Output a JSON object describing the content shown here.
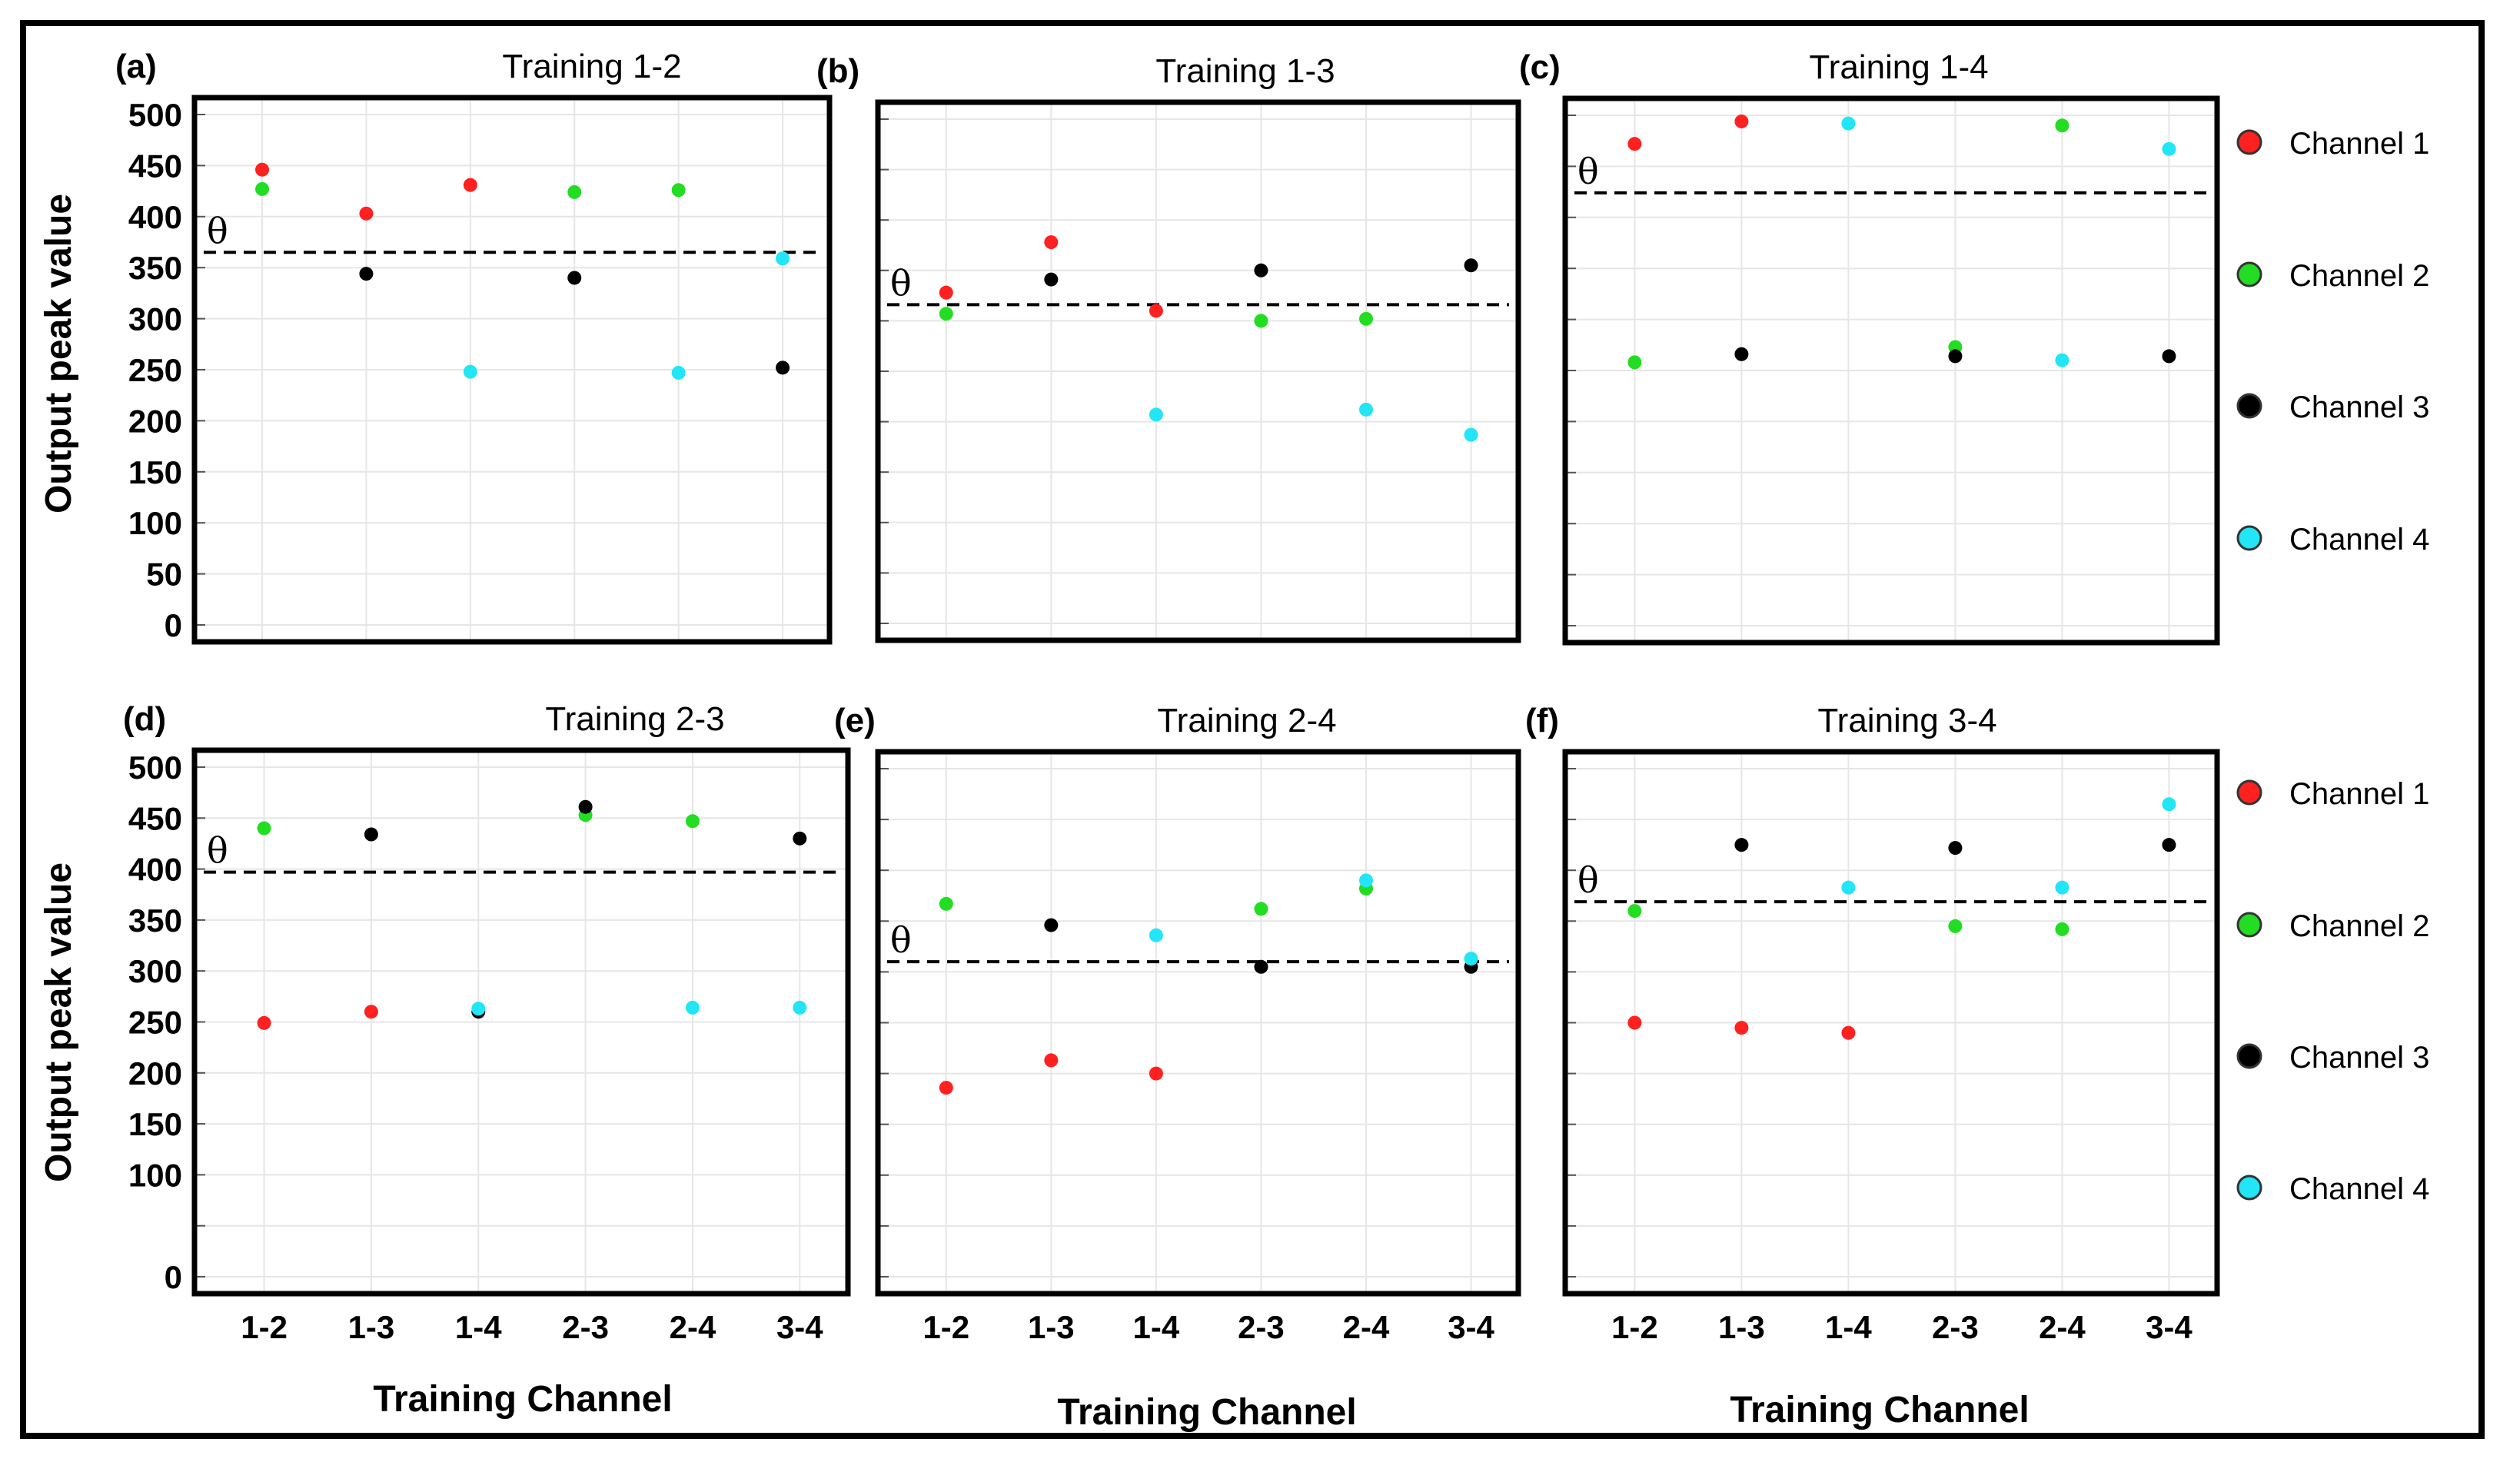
{
  "figure": {
    "ylabel": "Output peak value",
    "xlabel": "Training Channel",
    "threshold_symbol": "θ"
  },
  "legend": [
    {
      "label": "Channel 1",
      "color": "#ff2020"
    },
    {
      "label": "Channel 2",
      "color": "#22dd22"
    },
    {
      "label": "Channel 3",
      "color": "#000000"
    },
    {
      "label": "Channel 4",
      "color": "#22e5f5"
    }
  ],
  "chart_data": [
    {
      "type": "scatter",
      "panel": "(a)",
      "title": "Training 1-2",
      "categories": [
        "1-2",
        "1-3",
        "1-4",
        "2-3",
        "2-4",
        "3-4"
      ],
      "ylim": [
        0,
        500
      ],
      "yticks": [
        0,
        50,
        100,
        150,
        200,
        250,
        300,
        350,
        400,
        450,
        500
      ],
      "threshold": 365,
      "series": [
        {
          "name": "Channel 1",
          "values": [
            446,
            403,
            431,
            null,
            null,
            null
          ]
        },
        {
          "name": "Channel 2",
          "values": [
            427,
            null,
            null,
            424,
            426,
            null
          ]
        },
        {
          "name": "Channel 3",
          "values": [
            null,
            344,
            null,
            340,
            null,
            252
          ]
        },
        {
          "name": "Channel 4",
          "values": [
            null,
            null,
            248,
            null,
            247,
            359
          ]
        }
      ]
    },
    {
      "type": "scatter",
      "panel": "(b)",
      "title": "Training 1-3",
      "categories": [
        "1-2",
        "1-3",
        "1-4",
        "2-3",
        "2-4",
        "3-4"
      ],
      "ylim": [
        0,
        500
      ],
      "yticks": [
        0,
        50,
        100,
        150,
        200,
        250,
        300,
        350,
        400,
        450,
        500
      ],
      "threshold": 316,
      "series": [
        {
          "name": "Channel 1",
          "values": [
            328,
            378,
            310,
            null,
            null,
            null
          ]
        },
        {
          "name": "Channel 2",
          "values": [
            307,
            null,
            null,
            300,
            302,
            null
          ]
        },
        {
          "name": "Channel 3",
          "values": [
            null,
            341,
            null,
            350,
            null,
            355
          ]
        },
        {
          "name": "Channel 4",
          "values": [
            null,
            null,
            207,
            null,
            212,
            187
          ]
        }
      ]
    },
    {
      "type": "scatter",
      "panel": "(c)",
      "title": "Training 1-4",
      "categories": [
        "1-2",
        "1-3",
        "1-4",
        "2-3",
        "2-4",
        "3-4"
      ],
      "ylim": [
        0,
        500
      ],
      "yticks": [
        0,
        50,
        100,
        150,
        200,
        250,
        300,
        350,
        400,
        450,
        500
      ],
      "threshold": 424,
      "series": [
        {
          "name": "Channel 1",
          "values": [
            472,
            494,
            null,
            null,
            null,
            null
          ]
        },
        {
          "name": "Channel 2",
          "values": [
            258,
            null,
            null,
            273,
            490,
            null
          ]
        },
        {
          "name": "Channel 3",
          "values": [
            null,
            266,
            null,
            264,
            null,
            264
          ]
        },
        {
          "name": "Channel 4",
          "values": [
            null,
            null,
            492,
            null,
            260,
            467
          ]
        }
      ]
    },
    {
      "type": "scatter",
      "panel": "(d)",
      "title": "Training 2-3",
      "categories": [
        "1-2",
        "1-3",
        "1-4",
        "2-3",
        "2-4",
        "3-4"
      ],
      "ylim": [
        0,
        500
      ],
      "yticks": [
        0,
        50,
        100,
        150,
        200,
        250,
        300,
        350,
        400,
        450,
        500
      ],
      "threshold": 397,
      "series": [
        {
          "name": "Channel 1",
          "values": [
            249,
            260,
            null,
            null,
            null,
            null
          ]
        },
        {
          "name": "Channel 2",
          "values": [
            440,
            null,
            null,
            453,
            447,
            null
          ]
        },
        {
          "name": "Channel 3",
          "values": [
            null,
            434,
            260,
            461,
            null,
            430
          ]
        },
        {
          "name": "Channel 4",
          "values": [
            null,
            null,
            263,
            null,
            264,
            264
          ]
        }
      ]
    },
    {
      "type": "scatter",
      "panel": "(e)",
      "title": "Training 2-4",
      "categories": [
        "1-2",
        "1-3",
        "1-4",
        "2-3",
        "2-4",
        "3-4"
      ],
      "ylim": [
        0,
        500
      ],
      "yticks": [
        0,
        50,
        100,
        150,
        200,
        250,
        300,
        350,
        400,
        450,
        500
      ],
      "threshold": 310,
      "series": [
        {
          "name": "Channel 1",
          "values": [
            186,
            213,
            200,
            null,
            null,
            null
          ]
        },
        {
          "name": "Channel 2",
          "values": [
            367,
            null,
            null,
            362,
            382,
            null
          ]
        },
        {
          "name": "Channel 3",
          "values": [
            null,
            346,
            null,
            305,
            null,
            305
          ]
        },
        {
          "name": "Channel 4",
          "values": [
            null,
            null,
            336,
            null,
            390,
            313
          ]
        }
      ]
    },
    {
      "type": "scatter",
      "panel": "(f)",
      "title": "Training 3-4",
      "categories": [
        "1-2",
        "1-3",
        "1-4",
        "2-3",
        "2-4",
        "3-4"
      ],
      "ylim": [
        0,
        500
      ],
      "yticks": [
        0,
        50,
        100,
        150,
        200,
        250,
        300,
        350,
        400,
        450,
        500
      ],
      "threshold": 369,
      "series": [
        {
          "name": "Channel 1",
          "values": [
            250,
            245,
            240,
            null,
            null,
            null
          ]
        },
        {
          "name": "Channel 2",
          "values": [
            360,
            null,
            null,
            345,
            342,
            null
          ]
        },
        {
          "name": "Channel 3",
          "values": [
            null,
            425,
            null,
            422,
            null,
            425
          ]
        },
        {
          "name": "Channel 4",
          "values": [
            null,
            null,
            383,
            null,
            383,
            465
          ]
        }
      ]
    }
  ]
}
